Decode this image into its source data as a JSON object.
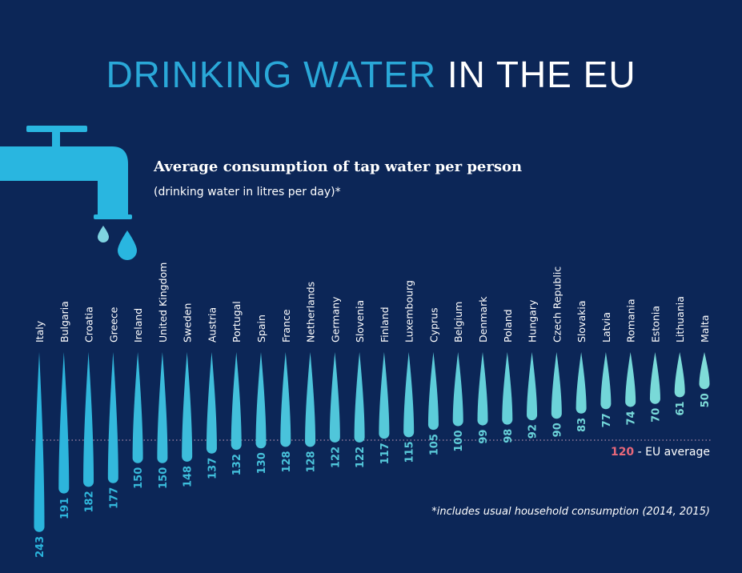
{
  "title_part1": "DRINKING WATER",
  "title_part2": "IN THE EU",
  "icon": "water-tap-icon",
  "colors": {
    "background": "#0c2657",
    "accent": "#2aa8d8",
    "average": "#e8687a",
    "drop_start": "#2ab4dc",
    "drop_end": "#7fdcd8"
  },
  "chart_data": {
    "type": "bar",
    "title": "Average consumption of tap water per person",
    "subtitle": "(drinking water in litres per day)*",
    "categories": [
      "Italy",
      "Bulgaria",
      "Croatia",
      "Greece",
      "Ireland",
      "United Kingdom",
      "Sweden",
      "Austria",
      "Portugal",
      "Spain",
      "France",
      "Netherlands",
      "Germany",
      "Slovenia",
      "Finland",
      "Luxembourg",
      "Cyprus",
      "Belgium",
      "Denmark",
      "Poland",
      "Hungary",
      "Czech Republic",
      "Slovakia",
      "Latvia",
      "Romania",
      "Estonia",
      "Lithuania",
      "Malta"
    ],
    "values": [
      243,
      191,
      182,
      177,
      150,
      150,
      148,
      137,
      132,
      130,
      128,
      128,
      122,
      122,
      117,
      115,
      105,
      100,
      99,
      98,
      92,
      90,
      83,
      77,
      74,
      70,
      61,
      50
    ],
    "reference_line": {
      "value": 120,
      "value_label": "120",
      "label": "- EU average"
    },
    "footnote": "*includes usual household consumption (2014, 2015)",
    "orientation": "vertical-downward"
  }
}
